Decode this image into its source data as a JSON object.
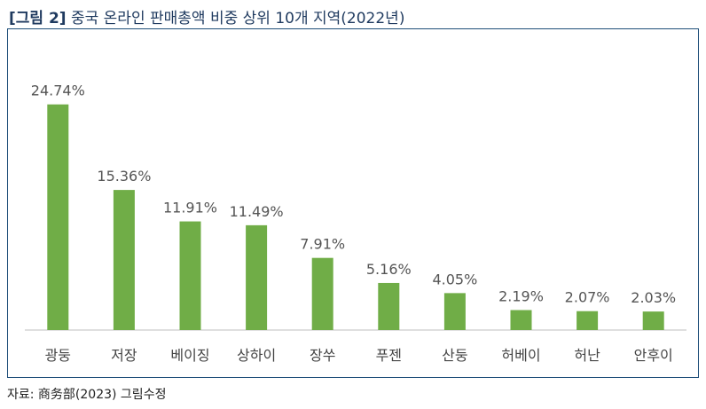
{
  "title": {
    "figure_label": "[그림 2]",
    "text": "중국 온라인 판매총액 비중 상위 10개 지역(2022년)"
  },
  "source": "자료: 商务部(2023) 그림수정",
  "colors": {
    "bar": "#70ad47",
    "axis": "#bfbfbf",
    "frame": "#1f4e79"
  },
  "chart_data": {
    "type": "bar",
    "categories": [
      "광둥",
      "저장",
      "베이징",
      "상하이",
      "장쑤",
      "푸젠",
      "산둥",
      "허베이",
      "허난",
      "안후이"
    ],
    "values": [
      24.74,
      15.36,
      11.91,
      11.49,
      7.91,
      5.16,
      4.05,
      2.19,
      2.07,
      2.03
    ],
    "value_labels": [
      "24.74%",
      "15.36%",
      "11.91%",
      "11.49%",
      "7.91%",
      "5.16%",
      "4.05%",
      "2.19%",
      "2.07%",
      "2.03%"
    ],
    "ylim": [
      0,
      25
    ],
    "grid": false,
    "legend": "none"
  }
}
